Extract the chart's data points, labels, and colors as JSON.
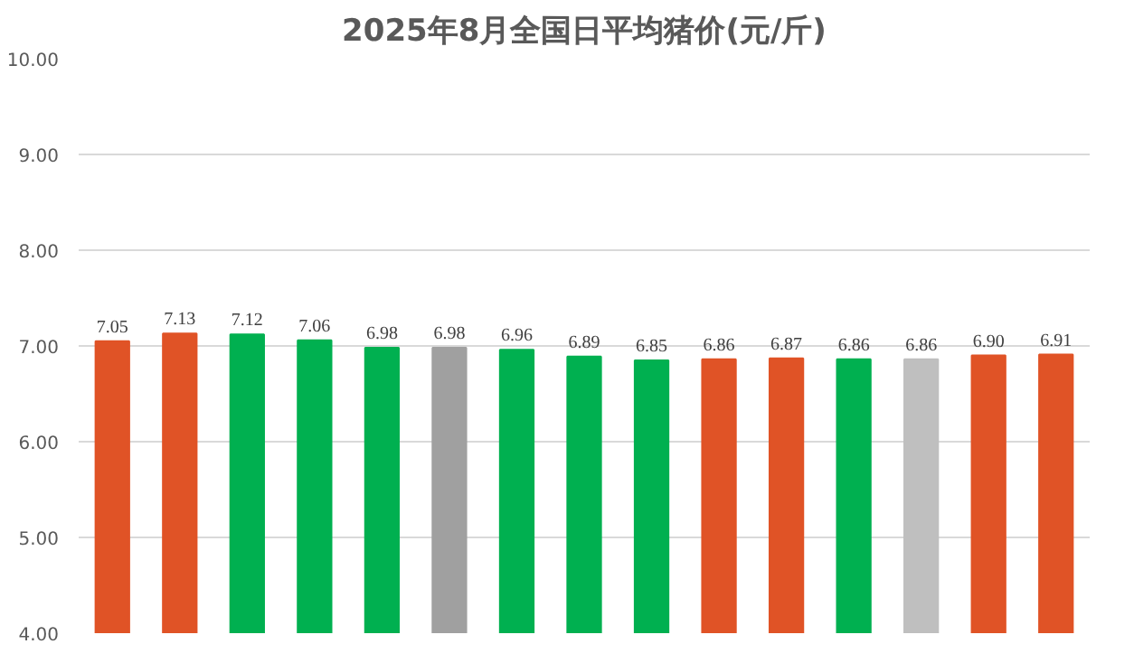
{
  "chart_data": {
    "type": "bar",
    "title": "2025年8月全国日平均猪价(元/斤)",
    "categories": [
      null,
      null,
      null,
      null,
      null,
      null,
      null,
      null,
      null,
      null,
      null,
      null,
      null,
      null,
      null
    ],
    "values": [
      7.05,
      7.13,
      7.12,
      7.06,
      6.98,
      6.98,
      6.96,
      6.89,
      6.85,
      6.86,
      6.87,
      6.86,
      6.86,
      6.9,
      6.91
    ],
    "value_labels": [
      "7.05",
      "7.13",
      "7.12",
      "7.06",
      "6.98",
      "6.98",
      "6.96",
      "6.89",
      "6.85",
      "6.86",
      "6.87",
      "6.86",
      "6.86",
      "6.90",
      "6.91"
    ],
    "colors": [
      "#e05326",
      "#e05326",
      "#00b050",
      "#00b050",
      "#00b050",
      "#a0a0a0",
      "#00b050",
      "#00b050",
      "#00b050",
      "#e05326",
      "#e05326",
      "#00b050",
      "#bfbfbf",
      "#e05326",
      "#e05326"
    ],
    "ylim": [
      4,
      10
    ],
    "yticks": [
      {
        "value": 4,
        "label": "4.00"
      },
      {
        "value": 5,
        "label": "5.00"
      },
      {
        "value": 6,
        "label": "6.00"
      },
      {
        "value": 7,
        "label": "7.00"
      },
      {
        "value": 8,
        "label": "8.00"
      },
      {
        "value": 9,
        "label": "9.00"
      },
      {
        "value": 10,
        "label": "10.00"
      }
    ],
    "grid": "y"
  }
}
